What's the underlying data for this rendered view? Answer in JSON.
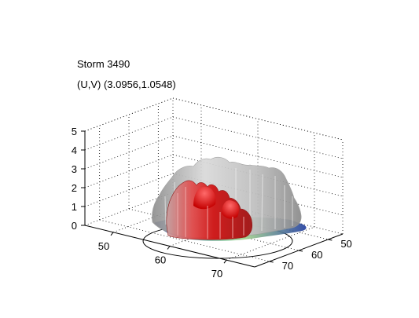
{
  "chart_data": {
    "type": "surface3d",
    "title": "Storm 3490",
    "subtitle": "(U,V) (3.0956,1.0548)",
    "xlabel": "",
    "ylabel": "",
    "zlabel": "",
    "x_ticks": [
      "50",
      "60",
      "70"
    ],
    "y_ticks": [
      "50",
      "60",
      "70"
    ],
    "z_ticks": [
      "0",
      "1",
      "2",
      "3",
      "4",
      "5"
    ],
    "xlim": [
      45,
      75
    ],
    "ylim": [
      45,
      75
    ],
    "zlim": [
      0,
      5
    ],
    "grid": true,
    "series": [
      {
        "kind": "isosurface-outer",
        "color": "#c8c8c8"
      },
      {
        "kind": "isosurface-inner",
        "color": "#e01818"
      },
      {
        "kind": "footprint-base",
        "color": "#2a3f9e"
      },
      {
        "kind": "ellipse-outline",
        "color": "#000000"
      }
    ]
  }
}
